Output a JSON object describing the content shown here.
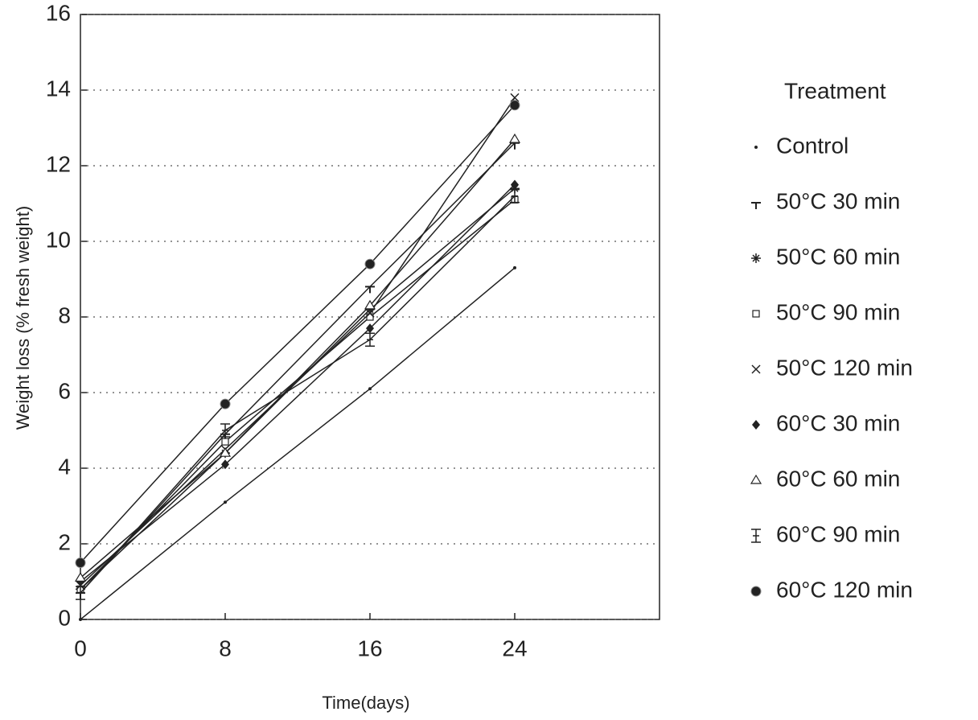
{
  "chart_data": {
    "type": "line",
    "x_label": "Time(days)",
    "y_label": "Weight loss (% fresh weight)",
    "legend_title": "Treatment",
    "legend_position": "right",
    "x": [
      0,
      8,
      16,
      24
    ],
    "xlim": [
      0,
      32
    ],
    "xticks": [
      0,
      8,
      16,
      24
    ],
    "ylim": [
      0,
      16
    ],
    "yticks": [
      0,
      2,
      4,
      6,
      8,
      10,
      12,
      14,
      16
    ],
    "grid": true,
    "series": [
      {
        "name": "Control",
        "color": "#222222",
        "marker": "dot",
        "values": [
          0,
          3.1,
          6.1,
          9.3
        ]
      },
      {
        "name": "50°C 30 min",
        "color": "#222222",
        "marker": "tee",
        "values": [
          0.7,
          4.9,
          8.8,
          12.6
        ]
      },
      {
        "name": "50°C 60 min",
        "color": "#222222",
        "marker": "star",
        "values": [
          0.8,
          4.4,
          8.2,
          11.4
        ]
      },
      {
        "name": "50°C 90 min",
        "color": "#222222",
        "marker": "square",
        "values": [
          0.8,
          4.7,
          8.0,
          11.1
        ]
      },
      {
        "name": "50°C 120 min",
        "color": "#222222",
        "marker": "x",
        "values": [
          0.9,
          4.5,
          8.1,
          13.8
        ]
      },
      {
        "name": "60°C 30 min",
        "color": "#222222",
        "marker": "diamond",
        "values": [
          1.0,
          4.1,
          7.7,
          11.5
        ]
      },
      {
        "name": "60°C 60 min",
        "color": "#222222",
        "marker": "triangle",
        "values": [
          1.1,
          4.4,
          8.3,
          12.7
        ]
      },
      {
        "name": "60°C 90 min",
        "color": "#222222",
        "marker": "ibar",
        "values": [
          0.7,
          5.0,
          7.4,
          11.2
        ]
      },
      {
        "name": "60°C 120 min",
        "color": "#222222",
        "marker": "circle",
        "values": [
          1.5,
          5.7,
          9.4,
          13.6
        ]
      }
    ]
  }
}
